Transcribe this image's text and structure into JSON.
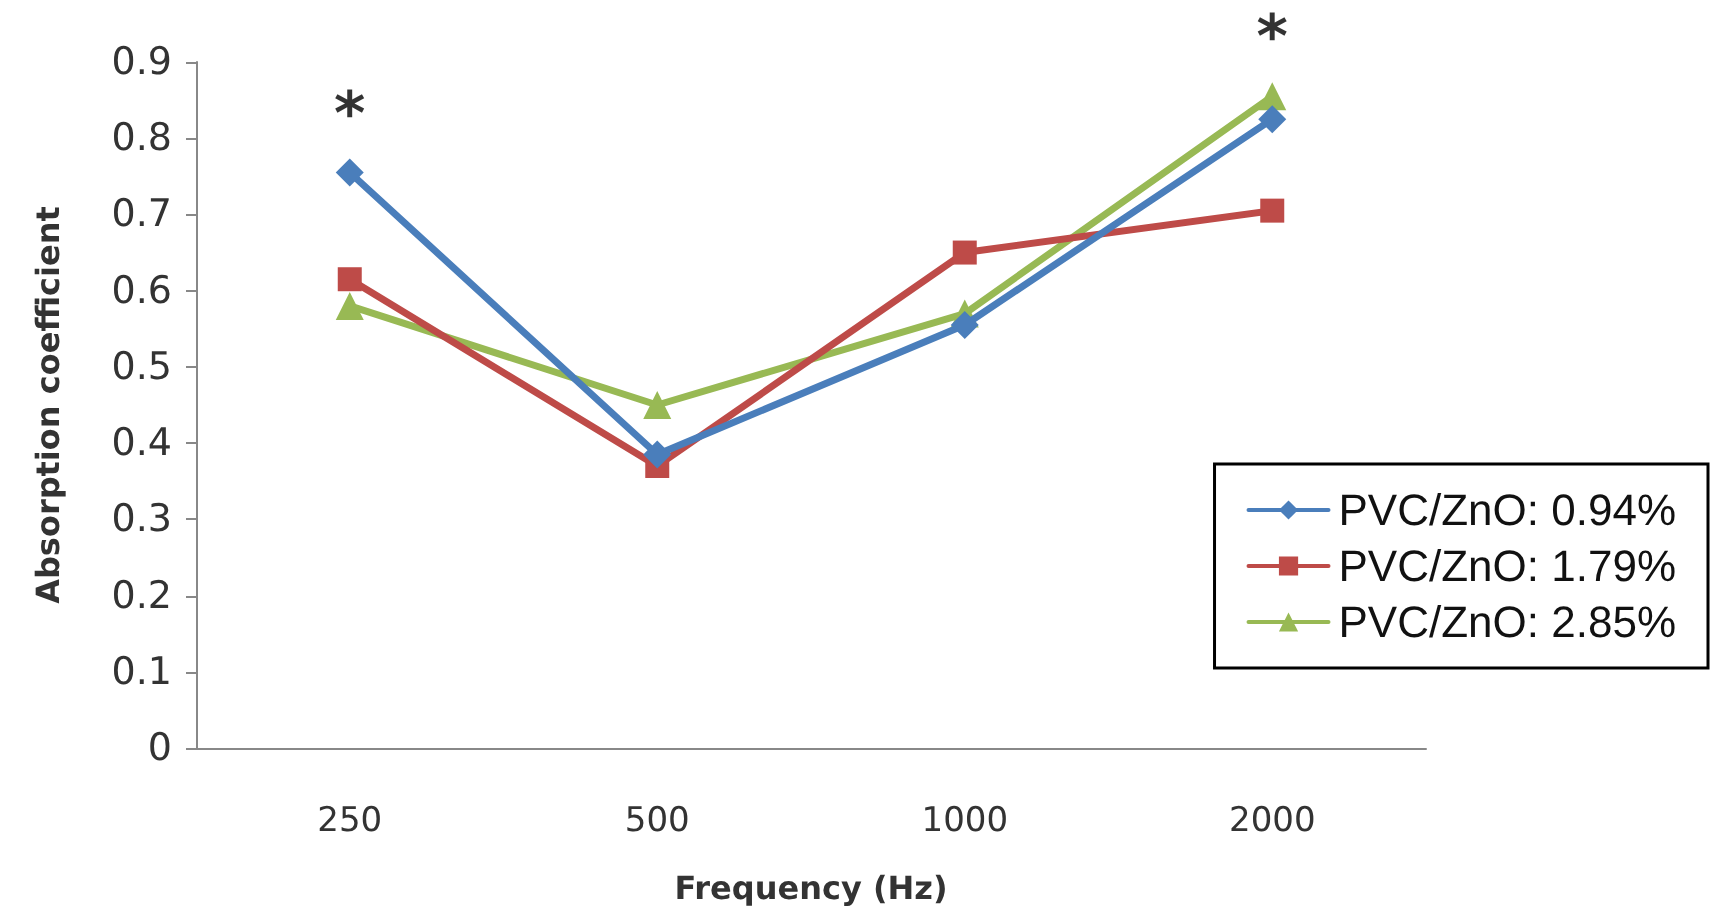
{
  "chart_data": {
    "type": "line",
    "xlabel": "Frequency (Hz)",
    "ylabel": "Absorption coefficient",
    "categories": [
      "250",
      "500",
      "1000",
      "2000"
    ],
    "series": [
      {
        "name": "PVC/ZnO: 0.94%",
        "color": "#4a7ebb",
        "marker": "diamond",
        "values": [
          0.755,
          0.385,
          0.555,
          0.825
        ]
      },
      {
        "name": "PVC/ZnO: 1.79%",
        "color": "#be4b48",
        "marker": "square",
        "values": [
          0.615,
          0.37,
          0.65,
          0.705
        ]
      },
      {
        "name": "PVC/ZnO: 2.85%",
        "color": "#98b954",
        "marker": "triangle",
        "values": [
          0.58,
          0.45,
          0.57,
          0.855
        ]
      }
    ],
    "ylim": [
      0,
      0.9
    ],
    "yticks": [
      0,
      0.1,
      0.2,
      0.3,
      0.4,
      0.5,
      0.6,
      0.7,
      0.8,
      0.9
    ],
    "annotations": [
      {
        "text": "*",
        "x": "250",
        "y": 0.755
      },
      {
        "text": "*",
        "x": "2000",
        "y": 0.855
      }
    ],
    "grid": false,
    "legend": "right"
  }
}
